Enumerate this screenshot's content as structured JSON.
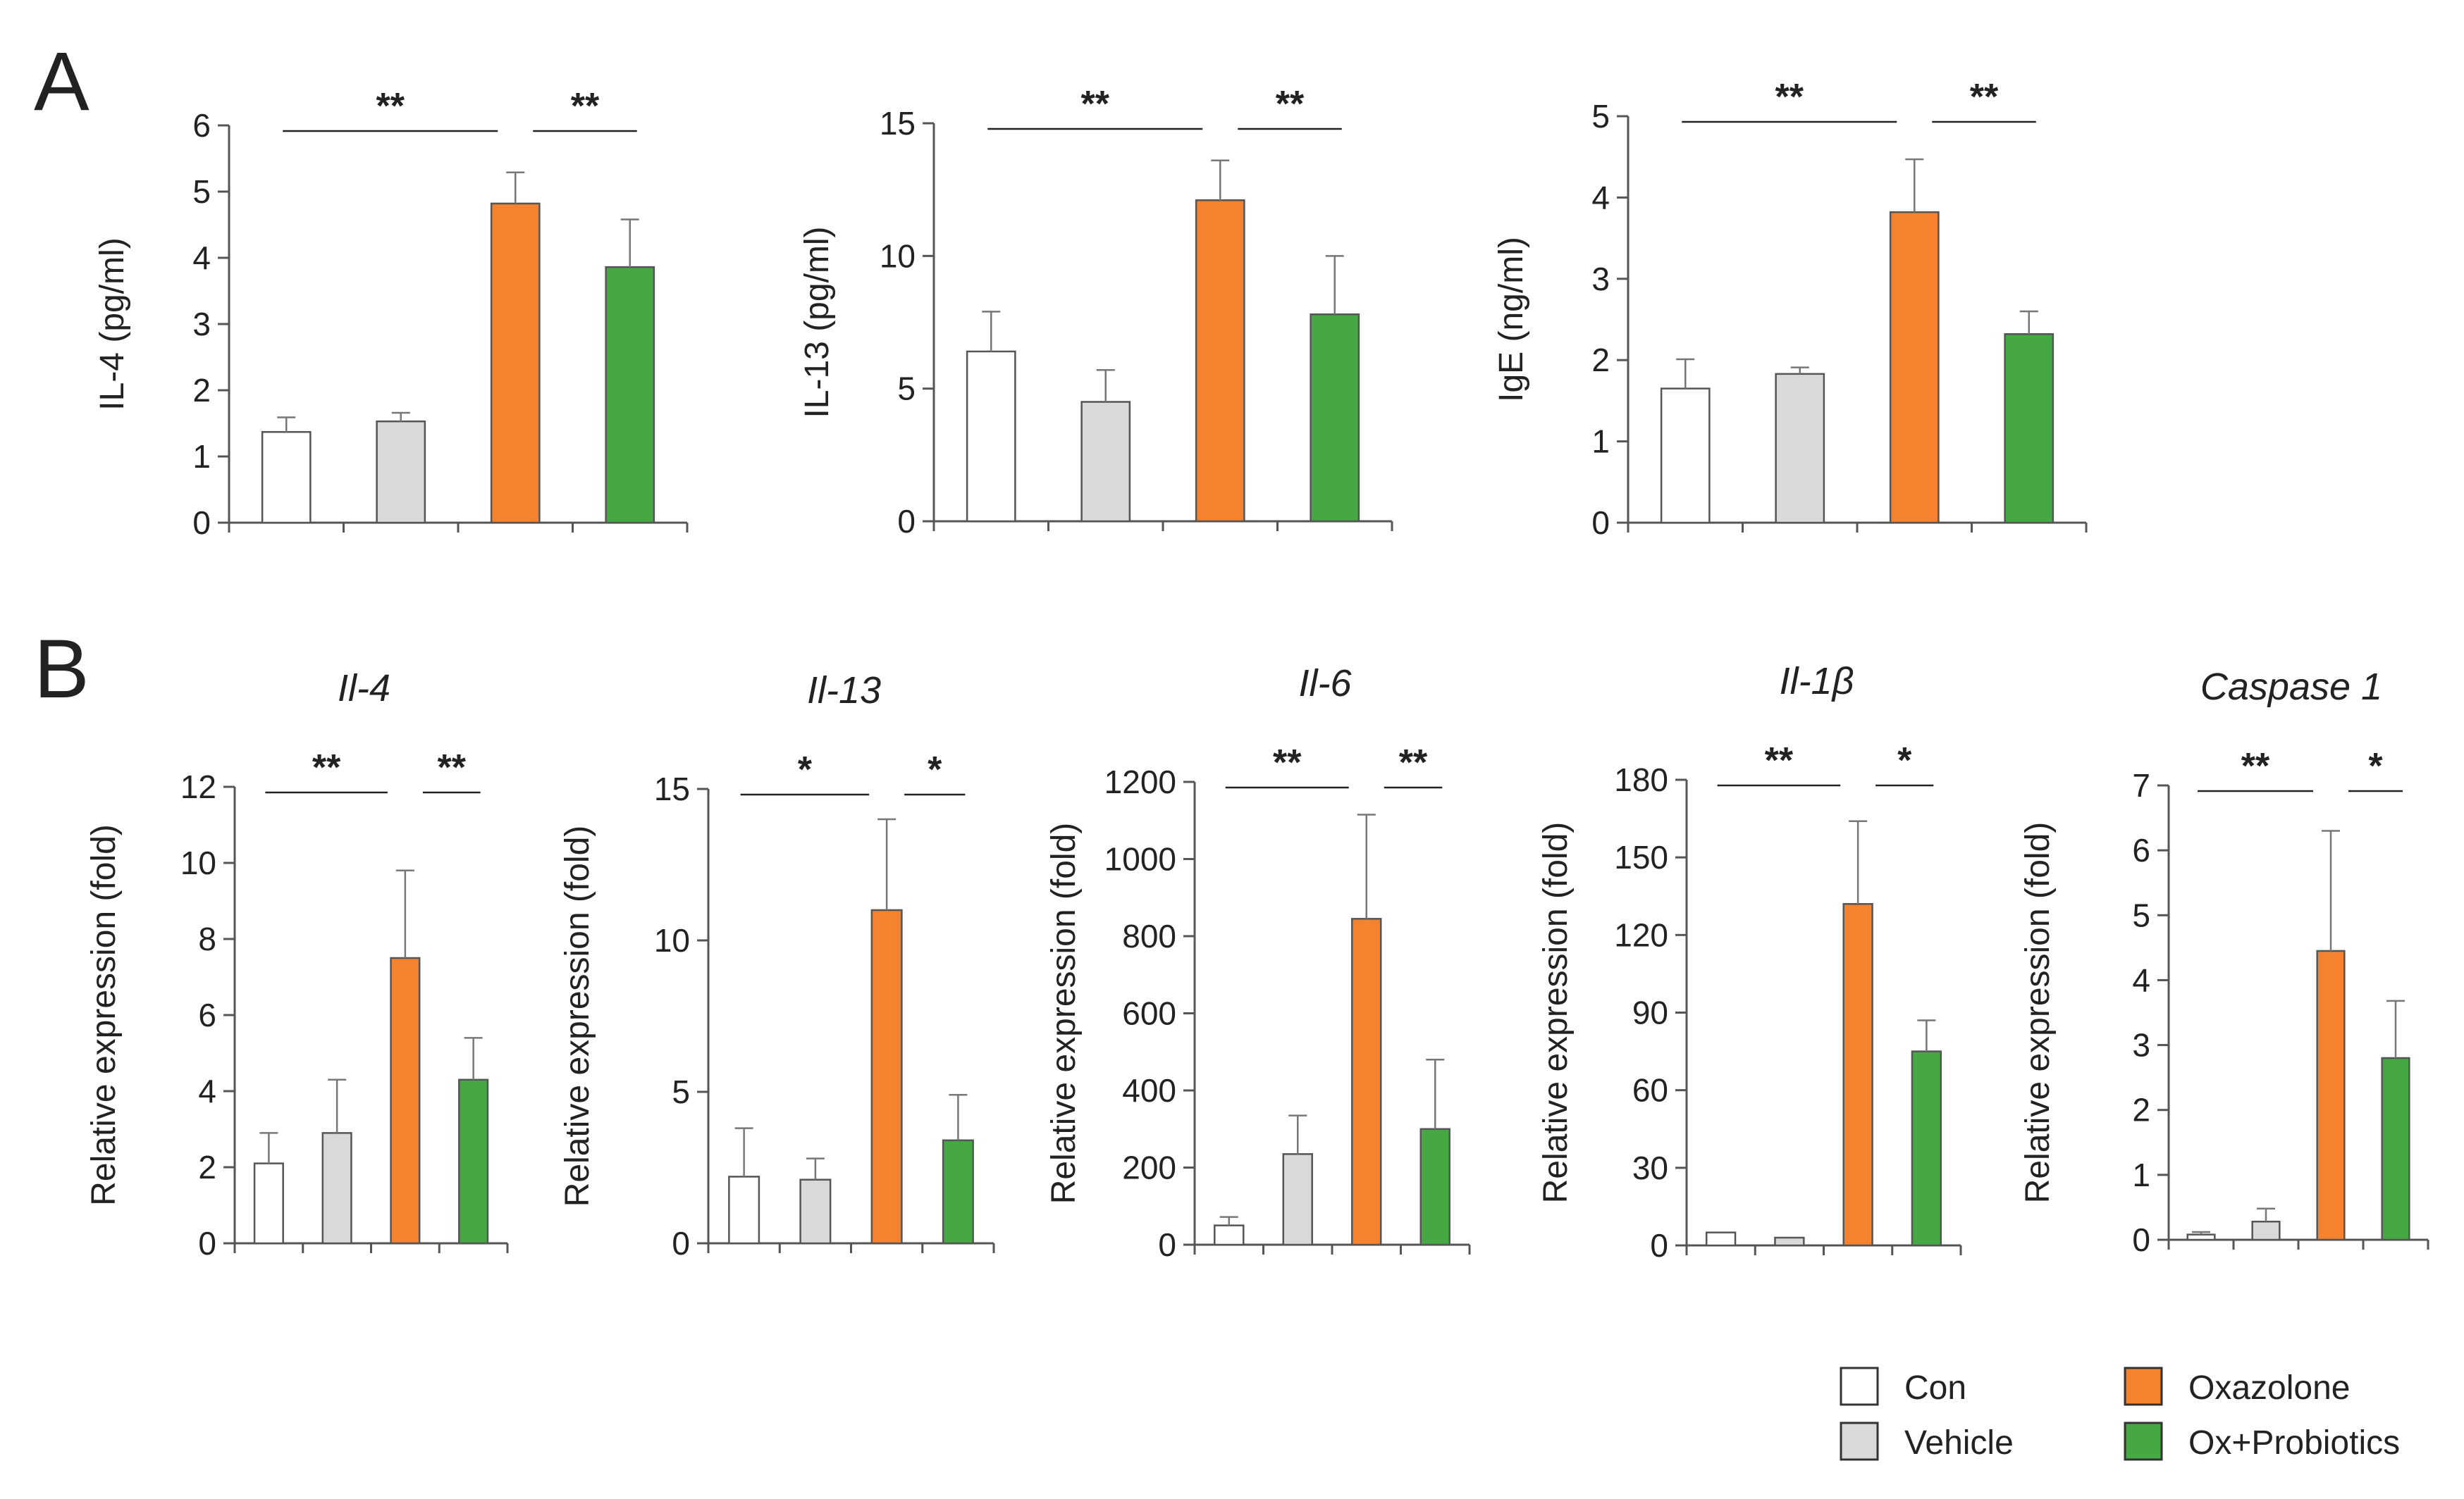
{
  "panel_labels": [
    "A",
    "B"
  ],
  "legend": [
    {
      "label": "Con",
      "color": "#ffffff"
    },
    {
      "label": "Vehicle",
      "color": "#d9d9d9"
    },
    {
      "label": "Oxazolone",
      "color": "#f5822f"
    },
    {
      "label": "Ox+Probiotics",
      "color": "#45a843"
    }
  ],
  "chart_data": [
    {
      "type": "bar",
      "panel": "A",
      "title": "",
      "ylabel": "IL-4 (pg/ml)",
      "categories": [
        "Con",
        "Vehicle",
        "Oxazolone",
        "Ox+Probiotics"
      ],
      "values": [
        1.37,
        1.53,
        4.82,
        3.86
      ],
      "errors": [
        0.22,
        0.13,
        0.47,
        0.72
      ],
      "ylim": [
        0,
        6
      ],
      "yticks": [
        "0",
        "1",
        "2",
        "3",
        "4",
        "5",
        "6"
      ],
      "significance": [
        {
          "from": 0,
          "to": 2,
          "label": "**"
        },
        {
          "from": 2,
          "to": 3,
          "label": "**"
        }
      ]
    },
    {
      "type": "bar",
      "panel": "A",
      "title": "",
      "ylabel": "IL-13 (pg/ml)",
      "categories": [
        "Con",
        "Vehicle",
        "Oxazolone",
        "Ox+Probiotics"
      ],
      "values": [
        6.4,
        4.5,
        12.1,
        7.8
      ],
      "errors": [
        1.5,
        1.2,
        1.5,
        2.2
      ],
      "ylim": [
        0,
        15
      ],
      "yticks": [
        "0",
        "5",
        "10",
        "15"
      ],
      "significance": [
        {
          "from": 0,
          "to": 2,
          "label": "**"
        },
        {
          "from": 2,
          "to": 3,
          "label": "**"
        }
      ]
    },
    {
      "type": "bar",
      "panel": "A",
      "title": "",
      "ylabel": "IgE (ng/ml)",
      "categories": [
        "Con",
        "Vehicle",
        "Oxazolone",
        "Ox+Probiotics"
      ],
      "values": [
        1.65,
        1.83,
        3.82,
        2.32
      ],
      "errors": [
        0.36,
        0.08,
        0.65,
        0.28
      ],
      "ylim": [
        0,
        5
      ],
      "yticks": [
        "0",
        "1",
        "2",
        "3",
        "4",
        "5"
      ],
      "significance": [
        {
          "from": 0,
          "to": 2,
          "label": "**"
        },
        {
          "from": 2,
          "to": 3,
          "label": "**"
        }
      ]
    },
    {
      "type": "bar",
      "panel": "B",
      "title": "Il-4",
      "ylabel": "Relative expression (fold)",
      "categories": [
        "Con",
        "Vehicle",
        "Oxazolone",
        "Ox+Probiotics"
      ],
      "values": [
        2.1,
        2.9,
        7.5,
        4.3
      ],
      "errors": [
        0.8,
        1.4,
        2.3,
        1.1
      ],
      "ylim": [
        0,
        12
      ],
      "yticks": [
        "0",
        "2",
        "4",
        "6",
        "8",
        "10",
        "12"
      ],
      "significance": [
        {
          "from": 0,
          "to": 2,
          "label": "**"
        },
        {
          "from": 2,
          "to": 3,
          "label": "**"
        }
      ]
    },
    {
      "type": "bar",
      "panel": "B",
      "title": "Il-13",
      "ylabel": "Relative expression (fold)",
      "categories": [
        "Con",
        "Vehicle",
        "Oxazolone",
        "Ox+Probiotics"
      ],
      "values": [
        2.2,
        2.1,
        11.0,
        3.4
      ],
      "errors": [
        1.6,
        0.7,
        3.0,
        1.5
      ],
      "ylim": [
        0,
        15
      ],
      "yticks": [
        "0",
        "5",
        "10",
        "15"
      ],
      "significance": [
        {
          "from": 0,
          "to": 2,
          "label": "*"
        },
        {
          "from": 2,
          "to": 3,
          "label": "*"
        }
      ]
    },
    {
      "type": "bar",
      "panel": "B",
      "title": "Il-6",
      "ylabel": "Relative expression (fold)",
      "categories": [
        "Con",
        "Vehicle",
        "Oxazolone",
        "Ox+Probiotics"
      ],
      "values": [
        50,
        235,
        845,
        300
      ],
      "errors": [
        22,
        100,
        270,
        180
      ],
      "ylim": [
        0,
        1200
      ],
      "yticks": [
        "0",
        "200",
        "400",
        "600",
        "800",
        "1000",
        "1200"
      ],
      "significance": [
        {
          "from": 0,
          "to": 2,
          "label": "**"
        },
        {
          "from": 2,
          "to": 3,
          "label": "**"
        }
      ]
    },
    {
      "type": "bar",
      "panel": "B",
      "title": "Il-1β",
      "ylabel": "Relative expression (fold)",
      "categories": [
        "Con",
        "Vehicle",
        "Oxazolone",
        "Ox+Probiotics"
      ],
      "values": [
        5,
        3,
        132,
        75
      ],
      "errors": [
        0,
        0,
        32,
        12
      ],
      "ylim": [
        0,
        180
      ],
      "yticks": [
        "0",
        "30",
        "60",
        "90",
        "120",
        "150",
        "180"
      ],
      "significance": [
        {
          "from": 0,
          "to": 2,
          "label": "**"
        },
        {
          "from": 2,
          "to": 3,
          "label": "*"
        }
      ]
    },
    {
      "type": "bar",
      "panel": "B",
      "title": "Caspase 1",
      "ylabel": "Relative expression (fold)",
      "categories": [
        "Con",
        "Vehicle",
        "Oxazolone",
        "Ox+Probiotics"
      ],
      "values": [
        0.08,
        0.28,
        4.45,
        2.8
      ],
      "errors": [
        0.04,
        0.2,
        1.85,
        0.88
      ],
      "ylim": [
        0,
        7
      ],
      "yticks": [
        "0",
        "1",
        "2",
        "3",
        "4",
        "5",
        "6",
        "7"
      ],
      "significance": [
        {
          "from": 0,
          "to": 2,
          "label": "**"
        },
        {
          "from": 2,
          "to": 3,
          "label": "*"
        }
      ]
    }
  ]
}
